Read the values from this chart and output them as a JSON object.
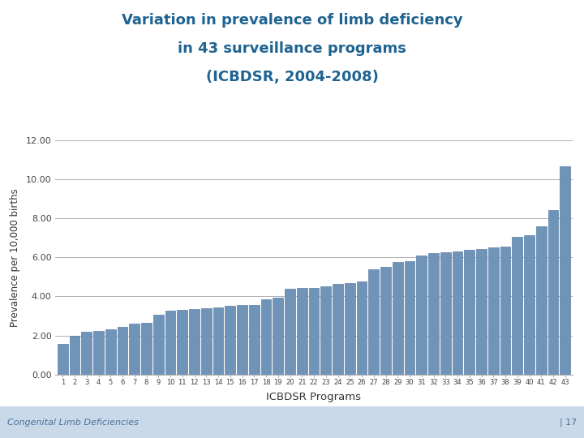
{
  "title_line1": "Variation in prevalence of limb deficiency",
  "title_line2": "in 43 surveillance programs",
  "title_line3": "(ICBDSR, 2004-2008)",
  "xlabel": "ICBDSR Programs",
  "ylabel": "Prevalence per 10,000 births",
  "ylim": [
    0,
    12
  ],
  "yticks": [
    0,
    2,
    4,
    6,
    8,
    10,
    12
  ],
  "ytick_labels": [
    "0.00",
    "2.00",
    "4.00",
    "6.00",
    "8.00",
    "10.00",
    "12.00"
  ],
  "bar_color": "#7094b8",
  "bar_edge_color": "#5a7fa8",
  "background_color": "#ffffff",
  "title_color": "#1f6391",
  "values": [
    1.55,
    2.0,
    2.2,
    2.25,
    2.3,
    2.45,
    2.6,
    2.65,
    3.05,
    3.25,
    3.3,
    3.35,
    3.38,
    3.42,
    3.5,
    3.55,
    3.58,
    3.85,
    3.95,
    4.4,
    4.43,
    4.45,
    4.5,
    4.65,
    4.7,
    4.75,
    5.4,
    5.5,
    5.75,
    5.8,
    6.1,
    6.2,
    6.25,
    6.3,
    6.4,
    6.42,
    6.5,
    6.55,
    7.05,
    7.15,
    7.6,
    8.4,
    10.65
  ],
  "footer_text": "Congenital Limb Deficiencies",
  "footer_right": "| 17",
  "footer_bg": "#c9d9ea"
}
